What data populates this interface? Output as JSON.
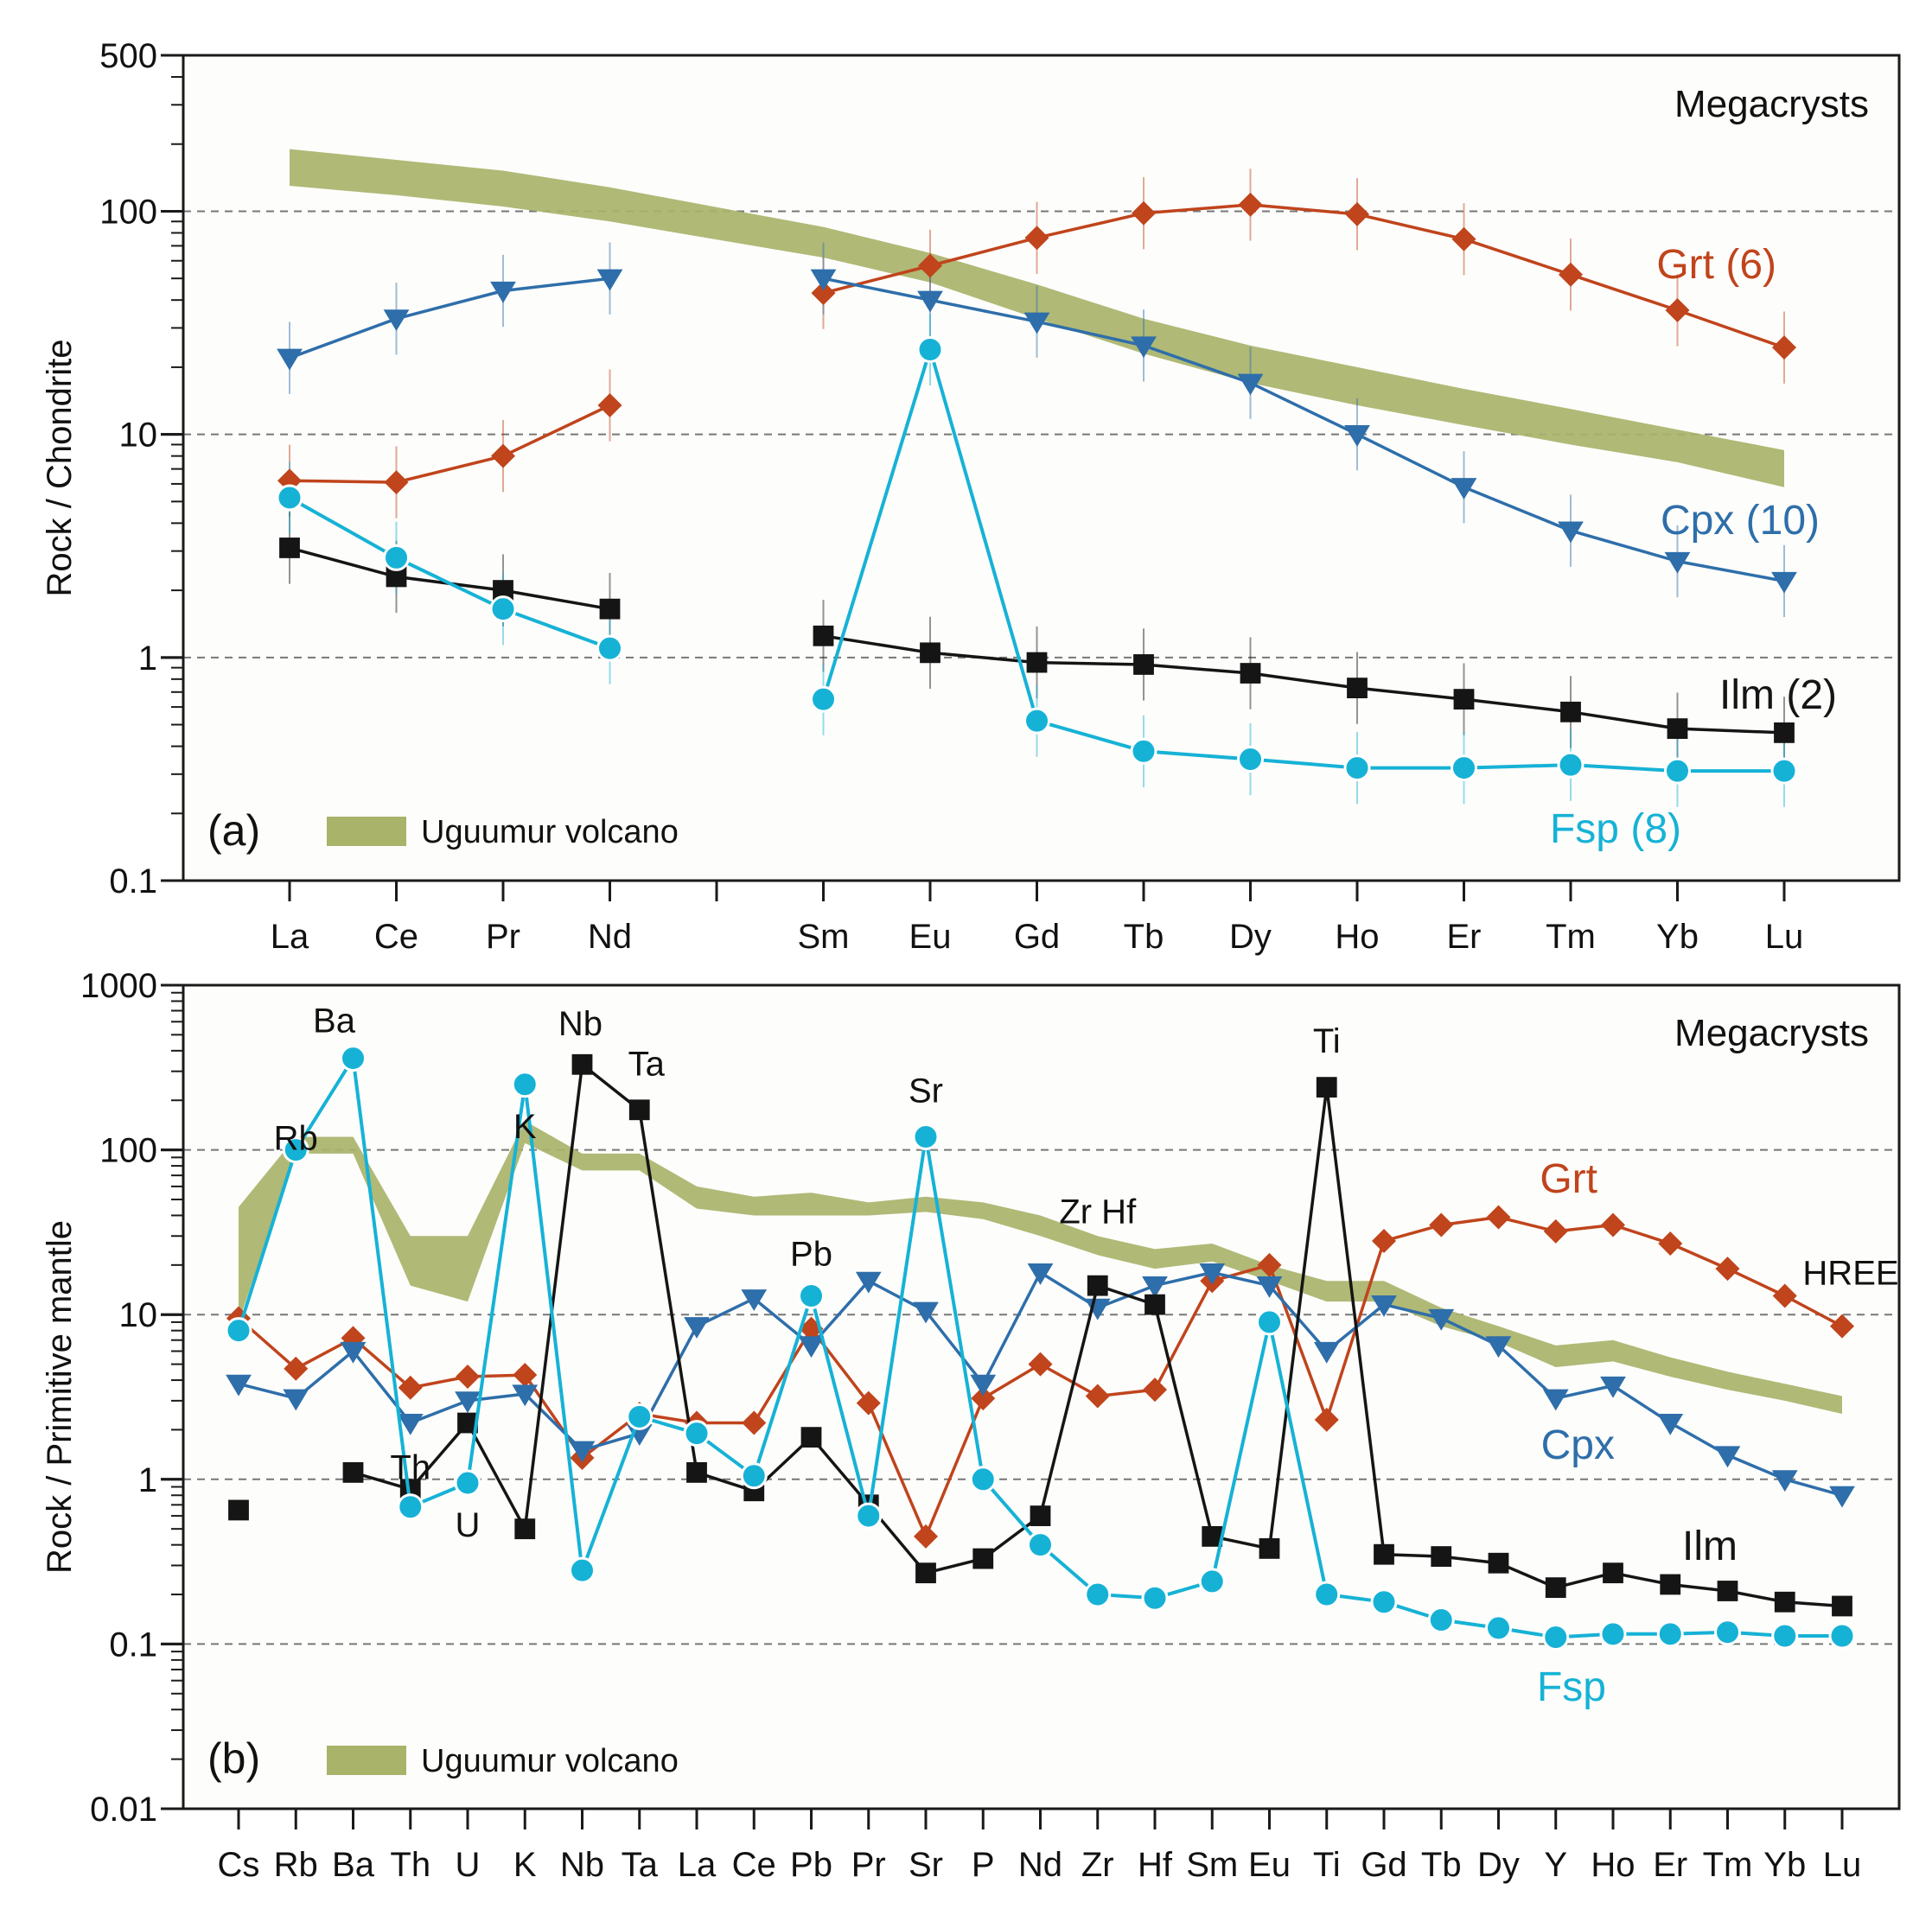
{
  "colors": {
    "grt": "#c0441c",
    "cpx": "#2e6eaa",
    "ilm": "#151515",
    "fsp": "#16b2d6",
    "band": "#a9b36a"
  },
  "chart_data": [
    {
      "type": "line",
      "yscale": "log",
      "ylim": [
        0.1,
        500
      ],
      "yticks": [
        {
          "v": 0.1,
          "t": "0.1"
        },
        {
          "v": 1,
          "t": "1"
        },
        {
          "v": 10,
          "t": "10"
        },
        {
          "v": 100,
          "t": "100"
        },
        {
          "v": 500,
          "t": "500"
        }
      ],
      "ylabel": "Rock / Chondrite",
      "corner_title": "Megacrysts",
      "panel_label": "(a)",
      "legend_label": "Uguumur volcano",
      "categories": [
        "La",
        "Ce",
        "Pr",
        "Nd",
        "",
        "Sm",
        "Eu",
        "Gd",
        "Tb",
        "Dy",
        "Ho",
        "Er",
        "Tm",
        "Yb",
        "Lu"
      ],
      "band": {
        "name": "Uguumur volcano",
        "upper": [
          190,
          170,
          152,
          128,
          null,
          85,
          65,
          47,
          33,
          25,
          20,
          16,
          13,
          10.5,
          8.5
        ],
        "lower": [
          130,
          118,
          105,
          90,
          null,
          62,
          48,
          33,
          23,
          17,
          13.5,
          11,
          9,
          7.5,
          5.8
        ]
      },
      "series": [
        {
          "key": "grt",
          "name": "Grt (6)",
          "marker": "diamond",
          "values": [
            6.2,
            6.1,
            8,
            13.5,
            null,
            43,
            57,
            76,
            98,
            107,
            97,
            75,
            52,
            36,
            24.5
          ]
        },
        {
          "key": "cpx",
          "name": "Cpx (10)",
          "marker": "tri-down",
          "values": [
            22,
            33,
            44,
            50,
            null,
            50,
            40,
            32,
            25,
            17,
            10,
            5.8,
            3.7,
            2.7,
            2.2
          ]
        },
        {
          "key": "ilm",
          "name": "Ilm (2)",
          "marker": "square",
          "values": [
            3.1,
            2.3,
            2,
            1.65,
            null,
            1.25,
            1.05,
            0.95,
            0.93,
            0.85,
            0.73,
            0.65,
            0.57,
            0.48,
            0.46
          ]
        },
        {
          "key": "fsp",
          "name": "Fsp (8)",
          "marker": "circle",
          "values": [
            5.2,
            2.8,
            1.65,
            1.1,
            null,
            0.65,
            24,
            0.52,
            0.38,
            0.35,
            0.32,
            0.32,
            0.33,
            0.31,
            0.31
          ]
        }
      ]
    },
    {
      "type": "line",
      "yscale": "log",
      "ylim": [
        0.01,
        1000
      ],
      "yticks": [
        {
          "v": 0.01,
          "t": "0.01"
        },
        {
          "v": 0.1,
          "t": "0.1"
        },
        {
          "v": 1,
          "t": "1"
        },
        {
          "v": 10,
          "t": "10"
        },
        {
          "v": 100,
          "t": "100"
        },
        {
          "v": 1000,
          "t": "1000"
        }
      ],
      "ylabel": "Rock / Primitive mantle",
      "corner_title": "Megacrysts",
      "panel_label": "(b)",
      "legend_label": "Uguumur volcano",
      "categories": [
        "Cs",
        "Rb",
        "Ba",
        "Th",
        "U",
        "K",
        "Nb",
        "Ta",
        "La",
        "Ce",
        "Pb",
        "Pr",
        "Sr",
        "P",
        "Nd",
        "Zr",
        "Hf",
        "Sm",
        "Eu",
        "Ti",
        "Gd",
        "Tb",
        "Dy",
        "Y",
        "Ho",
        "Er",
        "Tm",
        "Yb",
        "Lu"
      ],
      "band": {
        "name": "Uguumur volcano",
        "upper": [
          45,
          120,
          120,
          30,
          30,
          150,
          95,
          95,
          60,
          52,
          55,
          48,
          52,
          48,
          40,
          30,
          25,
          27,
          20,
          16,
          16,
          11,
          8.5,
          6.5,
          7,
          5.5,
          4.5,
          3.8,
          3.2
        ],
        "lower": [
          9,
          95,
          95,
          15,
          12,
          110,
          75,
          75,
          44,
          40,
          40,
          40,
          42,
          38,
          30,
          23,
          19,
          21,
          16,
          12,
          12,
          8.5,
          6.8,
          4.8,
          5.2,
          4.2,
          3.5,
          3,
          2.5
        ]
      },
      "series": [
        {
          "key": "grt",
          "name": "Grt",
          "marker": "diamond",
          "values": [
            9.5,
            4.7,
            7.2,
            3.6,
            4.2,
            4.3,
            1.35,
            2.5,
            2.2,
            2.2,
            8.2,
            2.9,
            0.45,
            3.1,
            5,
            3.2,
            3.5,
            16,
            20,
            2.3,
            28,
            35,
            39,
            32,
            35,
            27,
            19,
            13,
            8.5
          ]
        },
        {
          "key": "cpx",
          "name": "Cpx",
          "marker": "tri-down",
          "values": [
            3.8,
            3.1,
            6,
            2.2,
            3,
            3.3,
            1.5,
            1.9,
            8.5,
            12.5,
            6.5,
            16,
            10.5,
            3.8,
            18,
            11,
            15,
            18,
            15,
            6,
            11.5,
            9.5,
            6.5,
            3.1,
            3.7,
            2.2,
            1.4,
            1,
            0.8
          ]
        },
        {
          "key": "ilm",
          "name": "Ilm",
          "marker": "square",
          "values": [
            0.65,
            null,
            1.1,
            0.87,
            2.2,
            0.5,
            330,
            175,
            1.1,
            0.85,
            1.8,
            0.7,
            0.27,
            0.33,
            0.6,
            15,
            11.5,
            0.45,
            0.38,
            240,
            0.35,
            0.34,
            0.31,
            0.22,
            0.27,
            0.23,
            0.21,
            0.18,
            0.17
          ]
        },
        {
          "key": "fsp",
          "name": "Fsp",
          "marker": "circle",
          "values": [
            8,
            100,
            360,
            0.68,
            0.95,
            250,
            0.28,
            2.4,
            1.9,
            1.05,
            13,
            0.6,
            120,
            1,
            0.4,
            0.2,
            0.19,
            0.24,
            9,
            0.2,
            0.18,
            0.14,
            0.125,
            0.11,
            0.115,
            0.115,
            0.118,
            0.112,
            0.112
          ]
        }
      ],
      "annotations": [
        {
          "text": "Rb",
          "cat": 1,
          "v": 100
        },
        {
          "text": "Ba",
          "cat": 2,
          "v": 360
        },
        {
          "text": "Th",
          "cat": 3,
          "v": 0.68
        },
        {
          "text": "U",
          "cat": 4,
          "v": 0.95
        },
        {
          "text": "K",
          "cat": 5,
          "v": 250
        },
        {
          "text": "Nb",
          "cat": 6,
          "v": 330
        },
        {
          "text": "Ta",
          "cat": 7,
          "v": 175
        },
        {
          "text": "Pb",
          "cat": 10,
          "v": 13
        },
        {
          "text": "Sr",
          "cat": 12,
          "v": 120
        },
        {
          "text": "Zr Hf",
          "cat": 15,
          "v": 15
        },
        {
          "text": "Ti",
          "cat": 19,
          "v": 240
        },
        {
          "text": "HREE",
          "cat": 28,
          "v": 8.5
        }
      ]
    }
  ]
}
